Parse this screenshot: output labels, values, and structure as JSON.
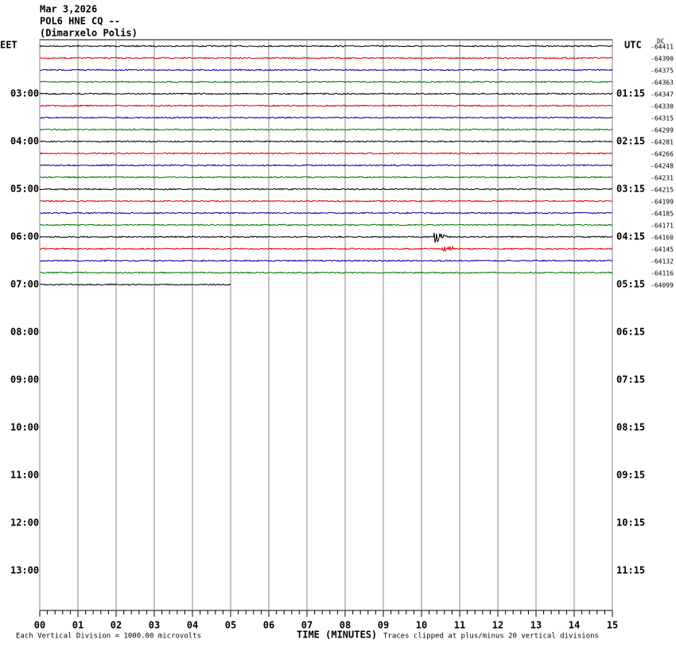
{
  "header": {
    "date": "Mar 3,2026",
    "station": "POL6 HNE CQ --",
    "location": "(Dimarxelo Polis)"
  },
  "left_axis": {
    "title": "EET",
    "labels": [
      "03:00",
      "04:00",
      "05:00",
      "06:00",
      "07:00",
      "08:00",
      "09:00",
      "10:00",
      "11:00",
      "12:00",
      "13:00"
    ]
  },
  "right_axis": {
    "title": "UTC",
    "labels": [
      "01:15",
      "02:15",
      "03:15",
      "04:15",
      "05:15",
      "06:15",
      "07:15",
      "08:15",
      "09:15",
      "10:15",
      "11:15"
    ]
  },
  "dc": {
    "title": "DC",
    "values": [
      -64411,
      -64390,
      -64375,
      -64363,
      -64347,
      -64330,
      -64315,
      -64299,
      -64281,
      -64266,
      -64248,
      -64231,
      -64215,
      -64199,
      -64185,
      -64171,
      -64160,
      -64145,
      -64132,
      -64116,
      -64099
    ]
  },
  "x_axis": {
    "title": "TIME (MINUTES)",
    "labels": [
      "00",
      "01",
      "02",
      "03",
      "04",
      "05",
      "06",
      "07",
      "08",
      "09",
      "10",
      "11",
      "12",
      "13",
      "14",
      "15"
    ]
  },
  "footer": {
    "scale": "Each Vertical Division = 1000.00 microvolts",
    "clip": "Traces clipped at plus/minus 20 vertical divisions"
  }
}
